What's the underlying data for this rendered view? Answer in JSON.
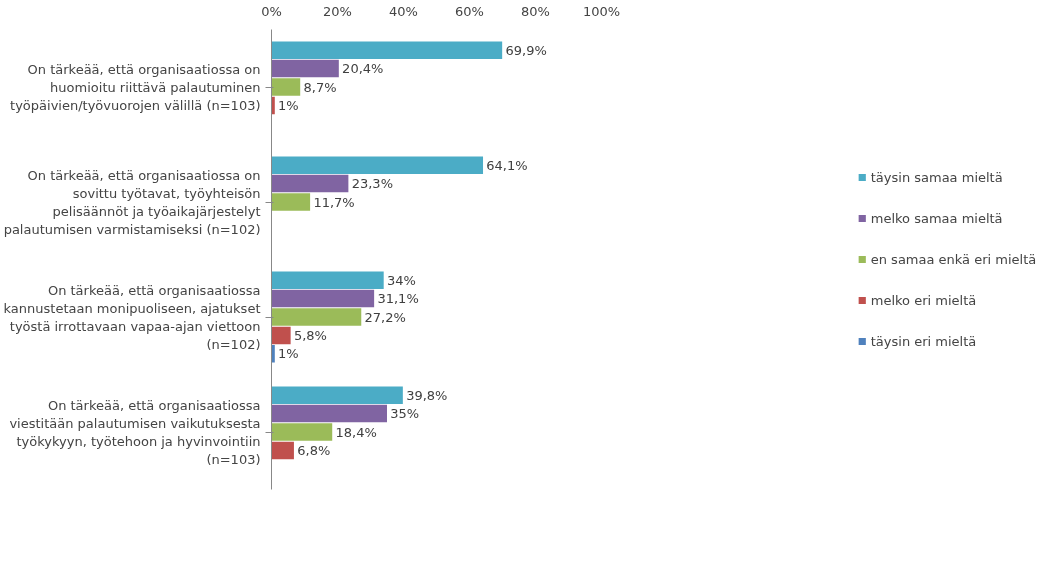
{
  "chart_data": {
    "type": "bar",
    "orientation": "horizontal",
    "categories": [
      "On tärkeää, että organisaatiossa on huomioitu riittävä palautuminen työpäivien/työvuorojen välillä (n=103)",
      "On tärkeää, että organisaatiossa on sovittu työtavat, työyhteisön pelisäännöt ja työaikajärjestelyt palautumisen varmistamiseksi (n=102)",
      "On tärkeää, että organisaatiossa kannustetaan monipuoliseen, ajatukset työstä irrottavaan vapaa-ajan viettoon (n=102)",
      "On tärkeää, että organisaatiossa viestitään palautumisen vaikutuksesta työkykyyn, työtehoon ja hyvinvointiin (n=103)"
    ],
    "series": [
      {
        "name": "täysin samaa mieltä",
        "color": "#4bacc6",
        "values": [
          69.9,
          64.1,
          34,
          39.8
        ],
        "value_labels": [
          "69,9%",
          "64,1%",
          "34%",
          "39,8%"
        ]
      },
      {
        "name": "melko samaa mieltä",
        "color": "#8064a2",
        "values": [
          20.4,
          23.3,
          31.1,
          35
        ],
        "value_labels": [
          "20,4%",
          "23,3%",
          "31,1%",
          "35%"
        ]
      },
      {
        "name": "en samaa enkä eri mieltä",
        "color": "#9bbb59",
        "values": [
          8.7,
          11.7,
          27.2,
          18.4
        ],
        "value_labels": [
          "8,7%",
          "11,7%",
          "27,2%",
          "18,4%"
        ]
      },
      {
        "name": "melko eri mieltä",
        "color": "#c0504d",
        "values": [
          1,
          null,
          5.8,
          6.8
        ],
        "value_labels": [
          "1%",
          null,
          "5,8%",
          "6,8%"
        ]
      },
      {
        "name": "täysin eri mieltä",
        "color": "#4f81bd",
        "values": [
          null,
          null,
          1,
          null
        ],
        "value_labels": [
          null,
          null,
          "1%",
          null
        ]
      }
    ],
    "xlim": [
      0,
      100
    ],
    "xticks": [
      {
        "value": 0,
        "label": "0%"
      },
      {
        "value": 20,
        "label": "20%"
      },
      {
        "value": 40,
        "label": "40%"
      },
      {
        "value": 60,
        "label": "60%"
      },
      {
        "value": 80,
        "label": "80%"
      },
      {
        "value": 100,
        "label": "100%"
      }
    ],
    "grid": false,
    "legend": "right"
  }
}
